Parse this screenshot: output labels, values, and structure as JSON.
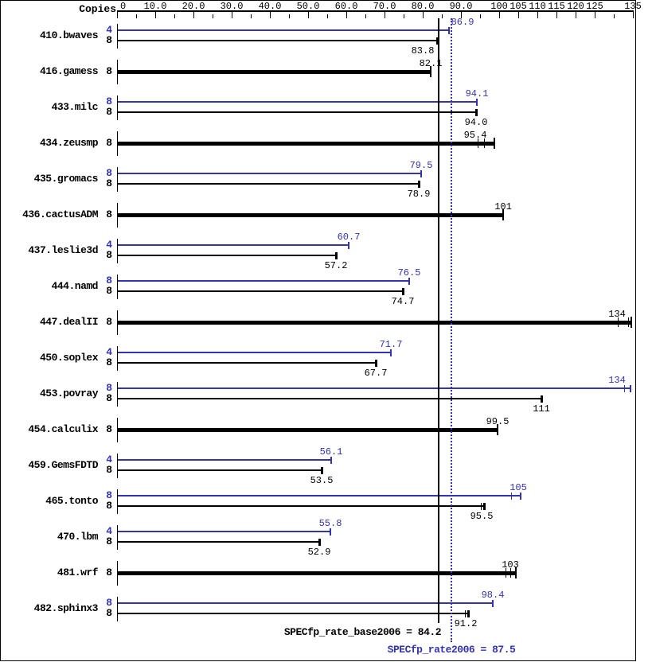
{
  "chart_data": {
    "type": "bar",
    "orientation": "horizontal",
    "header": {
      "copies_label": "Copies"
    },
    "axis": {
      "min": 0,
      "max": 135,
      "major": [
        {
          "v": 0,
          "label": "0"
        },
        {
          "v": 10,
          "label": "10.0"
        },
        {
          "v": 20,
          "label": "20.0"
        },
        {
          "v": 30,
          "label": "30.0"
        },
        {
          "v": 40,
          "label": "40.0"
        },
        {
          "v": 50,
          "label": "50.0"
        },
        {
          "v": 60,
          "label": "60.0"
        },
        {
          "v": 70,
          "label": "70.0"
        },
        {
          "v": 80,
          "label": "80.0"
        },
        {
          "v": 90,
          "label": "90.0"
        },
        {
          "v": 100,
          "label": "100"
        },
        {
          "v": 105,
          "label": "105"
        },
        {
          "v": 110,
          "label": "110"
        },
        {
          "v": 115,
          "label": "115"
        },
        {
          "v": 120,
          "label": "120"
        },
        {
          "v": 125,
          "label": "125"
        },
        {
          "v": 135,
          "label": "135"
        }
      ],
      "minor": [
        5,
        15,
        25,
        35,
        45,
        55,
        65,
        75,
        85,
        95,
        130
      ]
    },
    "benchmarks": [
      {
        "name": "410.bwaves",
        "bars": [
          {
            "type": "peak",
            "copies": "4",
            "value": "86.9",
            "end": 86.9,
            "ticks": [],
            "label_dx": 17
          },
          {
            "type": "base",
            "copies": "8",
            "value": "83.8",
            "end": 83.8,
            "ticks": [],
            "label_dx": -18
          }
        ]
      },
      {
        "name": "416.gamess",
        "bars": [
          {
            "type": "basepeak",
            "copies": "8",
            "value": "82.1",
            "end": 82.1,
            "ticks": []
          }
        ]
      },
      {
        "name": "433.milc",
        "bars": [
          {
            "type": "peak",
            "copies": "8",
            "value": "94.1",
            "end": 94.1,
            "ticks": []
          },
          {
            "type": "base",
            "copies": "8",
            "value": "94.0",
            "end": 94.0,
            "ticks": []
          }
        ]
      },
      {
        "name": "434.zeusmp",
        "bars": [
          {
            "type": "basepeak",
            "copies": "8",
            "value": "95.4",
            "end": 98.7,
            "ticks": [
              94.4,
              96.0
            ],
            "label_dx": -8
          }
        ]
      },
      {
        "name": "435.gromacs",
        "bars": [
          {
            "type": "peak",
            "copies": "8",
            "value": "79.5",
            "end": 79.5,
            "ticks": []
          },
          {
            "type": "base",
            "copies": "8",
            "value": "78.9",
            "end": 78.9,
            "ticks": []
          }
        ]
      },
      {
        "name": "436.cactusADM",
        "bars": [
          {
            "type": "basepeak",
            "copies": "8",
            "value": "101",
            "end": 101,
            "ticks": []
          }
        ]
      },
      {
        "name": "437.leslie3d",
        "bars": [
          {
            "type": "peak",
            "copies": "4",
            "value": "60.7",
            "end": 60.7,
            "ticks": []
          },
          {
            "type": "base",
            "copies": "8",
            "value": "57.2",
            "end": 57.2,
            "ticks": []
          }
        ]
      },
      {
        "name": "444.namd",
        "bars": [
          {
            "type": "peak",
            "copies": "8",
            "value": "76.5",
            "end": 76.5,
            "ticks": []
          },
          {
            "type": "base",
            "copies": "8",
            "value": "74.7",
            "end": 74.7,
            "ticks": []
          }
        ]
      },
      {
        "name": "447.dealII",
        "bars": [
          {
            "type": "basepeak",
            "copies": "8",
            "value": "134",
            "end": 134.6,
            "ticks": [
              131.0,
              133.8
            ]
          }
        ]
      },
      {
        "name": "450.soplex",
        "bars": [
          {
            "type": "peak",
            "copies": "4",
            "value": "71.7",
            "end": 71.7,
            "ticks": []
          },
          {
            "type": "base",
            "copies": "8",
            "value": "67.7",
            "end": 67.7,
            "ticks": []
          }
        ]
      },
      {
        "name": "453.povray",
        "bars": [
          {
            "type": "peak",
            "copies": "8",
            "value": "134",
            "end": 134.3,
            "ticks": [
              132.7
            ]
          },
          {
            "type": "base",
            "copies": "8",
            "value": "111",
            "end": 111,
            "ticks": []
          }
        ]
      },
      {
        "name": "454.calculix",
        "bars": [
          {
            "type": "basepeak",
            "copies": "8",
            "value": "99.5",
            "end": 99.5,
            "ticks": []
          }
        ]
      },
      {
        "name": "459.GemsFDTD",
        "bars": [
          {
            "type": "peak",
            "copies": "4",
            "value": "56.1",
            "end": 56.1,
            "ticks": []
          },
          {
            "type": "base",
            "copies": "8",
            "value": "53.5",
            "end": 53.5,
            "ticks": []
          }
        ]
      },
      {
        "name": "465.tonto",
        "bars": [
          {
            "type": "peak",
            "copies": "8",
            "value": "105",
            "end": 105.6,
            "ticks": [
              103.2
            ]
          },
          {
            "type": "base",
            "copies": "8",
            "value": "95.5",
            "end": 96.1,
            "ticks": [
              95.3
            ]
          }
        ]
      },
      {
        "name": "470.lbm",
        "bars": [
          {
            "type": "peak",
            "copies": "4",
            "value": "55.8",
            "end": 55.8,
            "ticks": []
          },
          {
            "type": "base",
            "copies": "8",
            "value": "52.9",
            "end": 52.9,
            "ticks": []
          }
        ]
      },
      {
        "name": "481.wrf",
        "bars": [
          {
            "type": "basepeak",
            "copies": "8",
            "value": "103",
            "end": 104.4,
            "ticks": [
              101.7,
              102.9
            ]
          }
        ]
      },
      {
        "name": "482.sphinx3",
        "bars": [
          {
            "type": "peak",
            "copies": "8",
            "value": "98.4",
            "end": 98.4,
            "ticks": []
          },
          {
            "type": "base",
            "copies": "8",
            "value": "91.2",
            "end": 91.9,
            "ticks": [
              91.0
            ]
          }
        ]
      }
    ],
    "reference_lines": [
      {
        "name": "base_mean",
        "style": "solid",
        "value": 84.2
      },
      {
        "name": "peak_mean",
        "style": "dotted",
        "value": 87.5
      }
    ],
    "footer": {
      "base_label": "SPECfp_rate_base2006 = 84.2",
      "peak_label": "SPECfp_rate2006 = 87.5"
    },
    "colors": {
      "peak": "#3333b0",
      "base": "#000000",
      "background": "#ffffff"
    }
  }
}
